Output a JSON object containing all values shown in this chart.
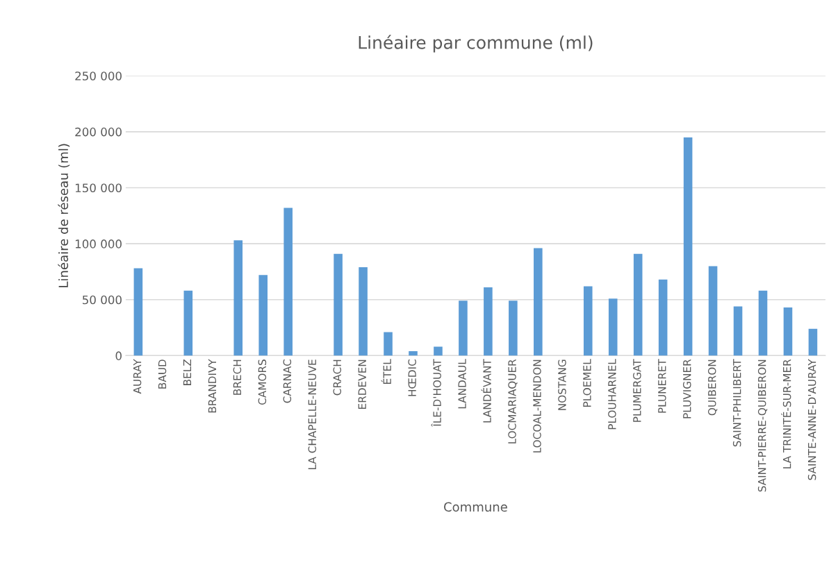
{
  "chart_data": {
    "type": "bar",
    "title": "Linéaire par commune (ml)",
    "xlabel": "Commune",
    "ylabel": "Linéaire de réseau (ml)",
    "categories": [
      "AURAY",
      "BAUD",
      "BELZ",
      "BRANDIVY",
      "BRECH",
      "CAMORS",
      "CARNAC",
      "LA CHAPELLE-NEUVE",
      "CRACH",
      "ERDEVEN",
      "ÉTEL",
      "HŒDIC",
      "ÎLE-D'HOUAT",
      "LANDAUL",
      "LANDÉVANT",
      "LOCMARIAQUER",
      "LOCOAL-MENDON",
      "NOSTANG",
      "PLOEMEL",
      "PLOUHARNEL",
      "PLUMERGAT",
      "PLUNERET",
      "PLUVIGNER",
      "QUIBERON",
      "SAINT-PHILIBERT",
      "SAINT-PIERRE-QUIBERON",
      "LA TRINITÉ-SUR-MER",
      "SAINTE-ANNE-D'AURAY"
    ],
    "values": [
      78000,
      0,
      58000,
      0,
      103000,
      72000,
      132000,
      0,
      91000,
      79000,
      21000,
      4000,
      8000,
      49000,
      61000,
      49000,
      96000,
      0,
      62000,
      51000,
      91000,
      68000,
      195000,
      80000,
      44000,
      58000,
      43000,
      24000
    ],
    "color": "#5b9bd5",
    "ylim": [
      0,
      250000
    ],
    "yticks": [
      {
        "value": 0,
        "label": "0"
      },
      {
        "value": 50000,
        "label": "50 000"
      },
      {
        "value": 100000,
        "label": "100 000"
      },
      {
        "value": 150000,
        "label": "150 000"
      },
      {
        "value": 200000,
        "label": "200 000"
      },
      {
        "value": 250000,
        "label": "250 000"
      }
    ],
    "grid": "y",
    "legend": false
  }
}
